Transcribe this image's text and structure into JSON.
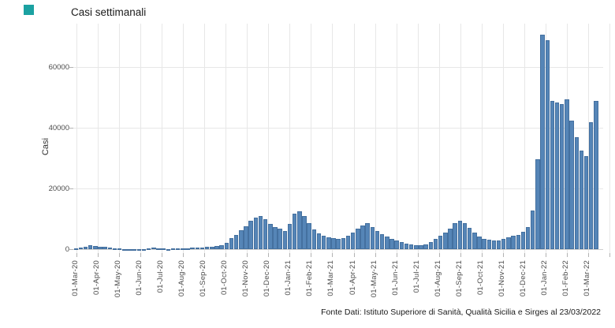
{
  "header": {
    "app_icon_color": "#1ba1a1"
  },
  "footer": {
    "source": "Fonte Dati: Istituto Superiore di Sanità, Qualità Sicilia e Sirges al 23/03/2022"
  },
  "chart_data": {
    "type": "bar",
    "title": "Casi settimanali",
    "xlabel": "",
    "ylabel": "Casi",
    "x_unit": "week",
    "ylim": [
      0,
      74000
    ],
    "grid": true,
    "legend": false,
    "bar_color": "#5585b7",
    "bar_border_color": "#44709f",
    "yticks": [
      0,
      20000,
      40000,
      60000
    ],
    "ytick_labels": [
      "0",
      "20000",
      "40000",
      "60000"
    ],
    "x_tick_labels": [
      "01-Mar-20",
      "01-Apr-20",
      "01-May-20",
      "01-Jun-20",
      "01-Jul-20",
      "01-Aug-20",
      "01-Sep-20",
      "01-Oct-20",
      "01-Nov-20",
      "01-Dec-20",
      "01-Jan-21",
      "01-Feb-21",
      "01-Mar-21",
      "01-Apr-21",
      "01-May-21",
      "01-Jun-21",
      "01-Jul-21",
      "01-Aug-21",
      "01-Sep-21",
      "01-Oct-21",
      "01-Nov-21",
      "01-Dec-21",
      "01-Jan-22",
      "01-Feb-22",
      "01-Mar-22"
    ],
    "values": [
      150,
      400,
      900,
      1300,
      1100,
      900,
      700,
      500,
      350,
      200,
      120,
      80,
      60,
      50,
      40,
      300,
      400,
      250,
      150,
      120,
      150,
      200,
      250,
      300,
      400,
      500,
      600,
      700,
      800,
      950,
      1200,
      2100,
      3600,
      4700,
      6300,
      7600,
      9400,
      10500,
      11000,
      9900,
      8300,
      7300,
      6800,
      6000,
      8300,
      11700,
      12400,
      11000,
      8600,
      6500,
      5200,
      4300,
      3900,
      3600,
      3300,
      3600,
      4300,
      5500,
      6800,
      7800,
      8600,
      7300,
      6000,
      5000,
      4200,
      3500,
      2800,
      2300,
      1900,
      1600,
      1400,
      1300,
      1600,
      2300,
      3400,
      4400,
      5500,
      6800,
      8600,
      9400,
      8600,
      7000,
      5500,
      4200,
      3400,
      3000,
      2800,
      2900,
      3300,
      3800,
      4400,
      4700,
      5600,
      7200,
      12800,
      29700,
      70600,
      68800,
      48900,
      48300,
      47700,
      49400,
      42300,
      36900,
      32500,
      30600,
      41800,
      48800
    ]
  }
}
